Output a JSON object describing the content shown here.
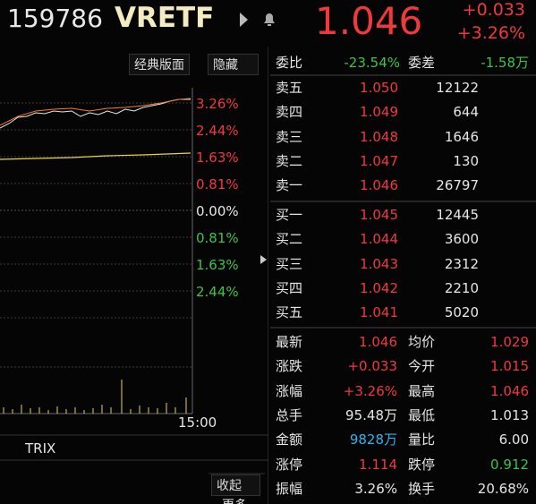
{
  "header": {
    "code": "159786",
    "name": "VRETF",
    "price": "1.046",
    "change": "+0.033",
    "change_pct": "+3.26%"
  },
  "toolbar": {
    "layout_button": "经典版面",
    "hide_button": "隐藏"
  },
  "axis_labels": [
    "3.26%",
    "2.44%",
    "1.63%",
    "0.81%",
    "0.00%",
    "0.81%",
    "1.63%",
    "2.44%"
  ],
  "time_label": "15:00",
  "indicator_tab": "TRIX",
  "collapse_button": "收起",
  "more_button": "更多",
  "order_summary": {
    "ratio_label": "委比",
    "ratio": "-23.54%",
    "diff_label": "委差",
    "diff": "-1.58万"
  },
  "asks": [
    {
      "label": "卖五",
      "price": "1.050",
      "volume": "12122"
    },
    {
      "label": "卖四",
      "price": "1.049",
      "volume": "644"
    },
    {
      "label": "卖三",
      "price": "1.048",
      "volume": "1646"
    },
    {
      "label": "卖二",
      "price": "1.047",
      "volume": "130"
    },
    {
      "label": "卖一",
      "price": "1.046",
      "volume": "26797"
    }
  ],
  "bids": [
    {
      "label": "买一",
      "price": "1.045",
      "volume": "12445"
    },
    {
      "label": "买二",
      "price": "1.044",
      "volume": "3600"
    },
    {
      "label": "买三",
      "price": "1.043",
      "volume": "2312"
    },
    {
      "label": "买四",
      "price": "1.042",
      "volume": "2210"
    },
    {
      "label": "买五",
      "price": "1.041",
      "volume": "5020"
    }
  ],
  "stats": [
    [
      "最新",
      "1.046",
      "均价",
      "1.029"
    ],
    [
      "涨跌",
      "+0.033",
      "今开",
      "1.015"
    ],
    [
      "涨幅",
      "+3.26%",
      "最高",
      "1.046"
    ],
    [
      "总手",
      "95.48万",
      "最低",
      "1.013"
    ],
    [
      "金额",
      "9828万",
      "量比",
      "6.00"
    ],
    [
      "涨停",
      "1.114",
      "跌停",
      "0.912"
    ],
    [
      "振幅",
      "3.26%",
      "换手",
      "20.68%"
    ]
  ]
}
